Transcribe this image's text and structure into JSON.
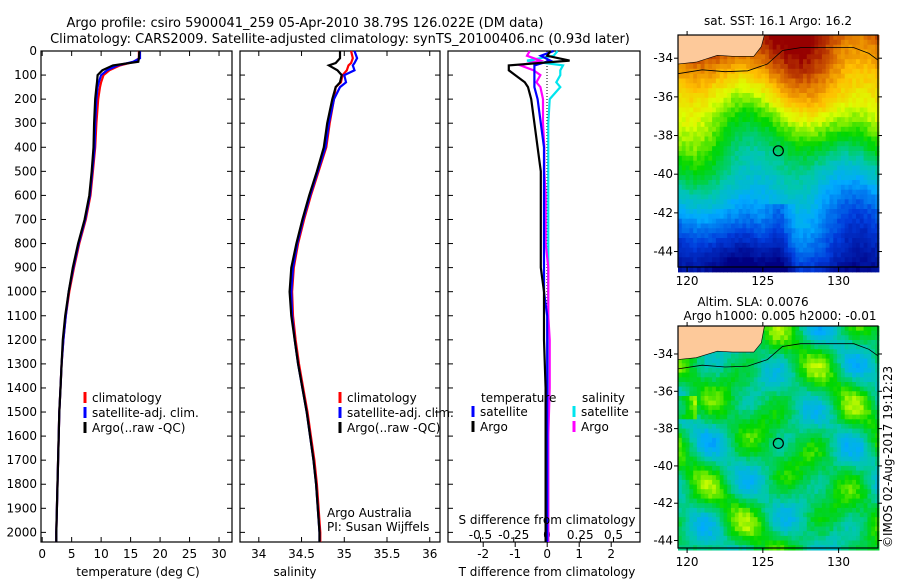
{
  "title_line1": "Argo profile: csiro 5900041_259 05-Apr-2010 38.79S 126.022E (DM data)",
  "title_line2": "Climatology: CARS2009. Satellite-adjusted climatology: synTS_20100406.nc (0.93d later)",
  "credit": "©IMOS 02-Aug-2017 19:12:23",
  "colors": {
    "climatology": "#ff0000",
    "satellite": "#0000ff",
    "argo": "#000000",
    "sal_satellite": "#00e5ee",
    "sal_argo": "#ff00ff",
    "land": "#fdc99a"
  },
  "chart_data": [
    {
      "type": "line",
      "id": "temperature",
      "xlabel": "temperature (deg C)",
      "ylabel": "",
      "xlim": [
        -0.2,
        32.2
      ],
      "ylim": [
        2040,
        0
      ],
      "xticks": [
        "0",
        "5",
        "10",
        "15",
        "20",
        "25",
        "30"
      ],
      "yticks": [
        "0",
        "100",
        "200",
        "300",
        "400",
        "500",
        "600",
        "700",
        "800",
        "900",
        "1000",
        "1100",
        "1200",
        "1300",
        "1400",
        "1500",
        "1600",
        "1700",
        "1800",
        "1900",
        "2000"
      ],
      "legend": [
        "climatology",
        "satellite-adj. clim.",
        "Argo(..raw -QC)"
      ],
      "depth": [
        0,
        30,
        45,
        60,
        80,
        100,
        130,
        150,
        200,
        300,
        400,
        500,
        600,
        700,
        800,
        900,
        1000,
        1100,
        1200,
        1300,
        1400,
        1500,
        1600,
        1700,
        1800,
        1900,
        2000,
        2040
      ],
      "series": [
        {
          "name": "climatology",
          "values": [
            16.4,
            16.4,
            15.6,
            13.2,
            11.4,
            10.4,
            10.0,
            9.8,
            9.5,
            9.2,
            9.0,
            8.6,
            8.2,
            7.4,
            6.3,
            5.4,
            4.6,
            4.0,
            3.6,
            3.3,
            3.1,
            2.9,
            2.8,
            2.7,
            2.6,
            2.5,
            2.4,
            2.4
          ]
        },
        {
          "name": "satellite-adj. clim.",
          "values": [
            16.6,
            16.6,
            15.4,
            12.8,
            11.0,
            10.0,
            9.6,
            9.4,
            9.2,
            9.0,
            8.9,
            8.5,
            8.1,
            7.3,
            6.2,
            5.3,
            4.5,
            4.0,
            3.6,
            3.3,
            3.1,
            2.9,
            2.8,
            2.7,
            2.6,
            2.5,
            2.4,
            2.4
          ]
        },
        {
          "name": "Argo(..raw -QC)",
          "values": [
            16.5,
            16.4,
            16.3,
            12.0,
            10.2,
            9.4,
            9.3,
            9.2,
            9.0,
            8.8,
            8.7,
            8.4,
            8.0,
            7.2,
            6.1,
            5.2,
            4.5,
            3.9,
            3.5,
            3.3,
            3.1,
            2.9,
            2.8,
            2.7,
            2.6,
            2.5,
            2.4,
            2.4
          ]
        }
      ]
    },
    {
      "type": "line",
      "id": "salinity",
      "xlabel": "salinity",
      "xlim": [
        33.78,
        36.12
      ],
      "ylim": [
        2040,
        0
      ],
      "xticks": [
        "34",
        "34.5",
        "35",
        "35.5",
        "36"
      ],
      "legend": [
        "climatology",
        "satellite-adj. clim.",
        "Argo(..raw -QC)"
      ],
      "annotation": [
        "Argo Australia",
        "PI: Susan Wijffels"
      ],
      "depth": [
        0,
        30,
        50,
        60,
        80,
        100,
        130,
        150,
        200,
        300,
        400,
        500,
        600,
        700,
        800,
        900,
        1000,
        1100,
        1200,
        1300,
        1400,
        1500,
        1600,
        1700,
        1800,
        1900,
        2000,
        2040
      ],
      "series": [
        {
          "name": "climatology",
          "values": [
            35.08,
            35.1,
            35.08,
            35.05,
            35.03,
            34.98,
            34.96,
            34.9,
            34.88,
            34.83,
            34.79,
            34.7,
            34.61,
            34.53,
            34.46,
            34.41,
            34.39,
            34.4,
            34.43,
            34.47,
            34.52,
            34.57,
            34.61,
            34.65,
            34.68,
            34.7,
            34.72,
            34.72
          ]
        },
        {
          "name": "satellite-adj. clim.",
          "values": [
            35.12,
            35.15,
            35.12,
            35.1,
            35.12,
            35.0,
            35.02,
            34.95,
            34.88,
            34.82,
            34.78,
            34.69,
            34.6,
            34.52,
            34.45,
            34.4,
            34.38,
            34.39,
            34.42,
            34.46,
            34.51,
            34.56,
            34.6,
            34.64,
            34.67,
            34.69,
            34.71,
            34.71
          ]
        },
        {
          "name": "Argo(..raw -QC)",
          "values": [
            34.95,
            34.95,
            34.9,
            34.82,
            34.92,
            34.97,
            34.95,
            34.9,
            34.86,
            34.8,
            34.76,
            34.68,
            34.59,
            34.51,
            34.44,
            34.38,
            34.36,
            34.38,
            34.42,
            34.46,
            34.51,
            34.56,
            34.6,
            34.64,
            34.67,
            34.69,
            34.71,
            34.71
          ]
        }
      ]
    },
    {
      "type": "line",
      "id": "difference",
      "xlabel": "T difference from climatology",
      "xlabel_top": "S difference from climatology",
      "xlim_T": [
        -3.1,
        2.9
      ],
      "xlim_S": [
        -0.5,
        0.5
      ],
      "xticks_T": [
        "-2",
        "-1",
        "0",
        "1",
        "2"
      ],
      "xticks_S": [
        "-0.5",
        "-0.25",
        "0",
        "0.25",
        "0.5"
      ],
      "legend_T_title": "temperature",
      "legend_S_title": "salinity",
      "legend": [
        "satellite",
        "Argo",
        "satellite",
        "Argo"
      ],
      "depth": [
        0,
        20,
        40,
        60,
        80,
        100,
        130,
        150,
        200,
        300,
        400,
        500,
        600,
        700,
        800,
        900,
        1000,
        1100,
        1200,
        1400,
        1600,
        1800,
        2000,
        2040
      ],
      "series": [
        {
          "name": "T satellite",
          "values": [
            0.2,
            -0.2,
            0.1,
            -0.4,
            -0.4,
            -0.4,
            -0.4,
            -0.4,
            -0.3,
            -0.2,
            -0.1,
            -0.1,
            -0.1,
            -0.1,
            -0.1,
            -0.1,
            -0.1,
            0,
            0,
            0,
            0,
            0,
            0,
            0
          ]
        },
        {
          "name": "T Argo",
          "values": [
            0.1,
            0.0,
            0.7,
            -1.2,
            -1.2,
            -1.0,
            -0.7,
            -0.6,
            -0.5,
            -0.4,
            -0.3,
            -0.2,
            -0.2,
            -0.2,
            -0.2,
            -0.2,
            -0.1,
            -0.1,
            -0.1,
            -0.05,
            -0.05,
            -0.05,
            -0.05,
            -0.05
          ]
        },
        {
          "name": "S satellite",
          "values": [
            0.08,
            0.05,
            -0.15,
            0.12,
            0.1,
            0.1,
            0.07,
            0.1,
            0.02,
            0.01,
            0.01,
            0.01,
            0.01,
            0.01,
            0.01,
            0.01,
            0.01,
            0.01,
            0.01,
            0.01,
            0.01,
            0.01,
            0.01,
            0.01
          ]
        },
        {
          "name": "S Argo",
          "values": [
            -0.13,
            -0.15,
            -0.05,
            -0.2,
            -0.1,
            -0.05,
            -0.08,
            -0.05,
            -0.03,
            -0.03,
            -0.02,
            -0.02,
            -0.01,
            -0.01,
            -0.01,
            0.01,
            0.01,
            0.01,
            0.02,
            0.02,
            0.01,
            0.01,
            0.01,
            0.01
          ]
        }
      ]
    },
    {
      "type": "heatmap",
      "id": "sst_map",
      "title": "sat. SST: 16.1 Argo: 16.2",
      "lon_range": [
        119.4,
        132.6
      ],
      "lat_range": [
        -44.8,
        -32.8
      ],
      "xticks": [
        "120",
        "125",
        "130"
      ],
      "yticks": [
        "-34",
        "-36",
        "-38",
        "-40",
        "-42",
        "-44"
      ],
      "value_range": [
        11.5,
        19.5
      ],
      "argo_position": [
        126.022,
        -38.79
      ]
    },
    {
      "type": "heatmap",
      "id": "sla_map",
      "title_line1": "Altim. SLA: 0.0076",
      "title_line2": "Argo h1000: 0.005 h2000: -0.01",
      "lon_range": [
        119.4,
        132.6
      ],
      "lat_range": [
        -44.4,
        -32.5
      ],
      "xticks": [
        "120",
        "125",
        "130"
      ],
      "yticks": [
        "-34",
        "-36",
        "-38",
        "-40",
        "-42",
        "-44"
      ],
      "value_range": [
        -0.4,
        0.4
      ],
      "argo_position": [
        126.022,
        -38.79
      ]
    }
  ]
}
